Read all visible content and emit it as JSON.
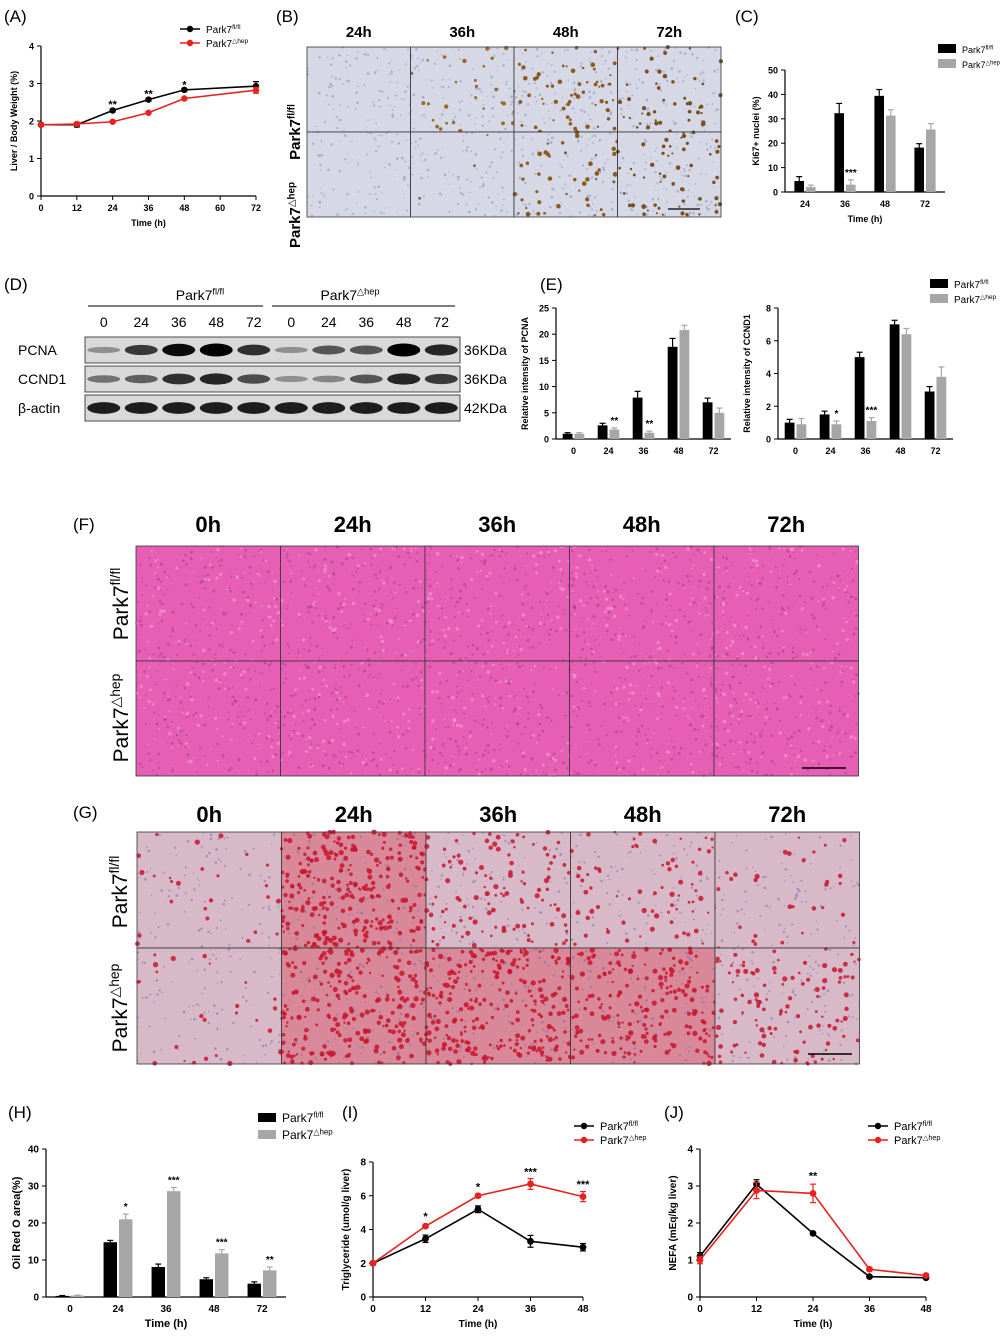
{
  "colors": {
    "fl": "#000000",
    "hep": "#e8221d",
    "bar_fl": "#000000",
    "bar_hep": "#a6a6a6",
    "ihc_bg": "#d6d8e6",
    "he_bg": "#e65fb4",
    "oro_bg": "#d8b9c8"
  },
  "legend": {
    "fl_base": "Park7",
    "fl_sup": "fl/fl",
    "hep_base": "Park7",
    "hep_sup": "△hep"
  },
  "panels": {
    "A": {
      "label": "(A)"
    },
    "B": {
      "label": "(B)",
      "cols": [
        "24h",
        "36h",
        "48h",
        "72h"
      ],
      "rows": [
        "fl",
        "hep"
      ]
    },
    "C": {
      "label": "(C)"
    },
    "D": {
      "label": "(D)",
      "group1": "Park7",
      "group1_sup": "fl/fl",
      "group2": "Park7",
      "group2_sup": "△hep",
      "lanes": [
        "0",
        "24",
        "36",
        "48",
        "72",
        "0",
        "24",
        "36",
        "48",
        "72"
      ],
      "proteins": [
        "PCNA",
        "CCND1",
        "β-actin"
      ],
      "sizes": [
        "36KDa",
        "36KDa",
        "42KDa"
      ],
      "band_intensity": {
        "PCNA": [
          0.25,
          0.7,
          0.95,
          1.0,
          0.75,
          0.25,
          0.55,
          0.55,
          1.0,
          0.8
        ],
        "CCND1": [
          0.4,
          0.5,
          0.75,
          0.8,
          0.6,
          0.25,
          0.3,
          0.55,
          0.8,
          0.7
        ],
        "β-actin": [
          0.85,
          0.85,
          0.85,
          0.85,
          0.85,
          0.85,
          0.85,
          0.85,
          0.85,
          0.85
        ]
      }
    },
    "E": {
      "label": "(E)"
    },
    "F": {
      "label": "(F)",
      "cols": [
        "0h",
        "24h",
        "36h",
        "48h",
        "72h"
      ]
    },
    "G": {
      "label": "(G)",
      "cols": [
        "0h",
        "24h",
        "36h",
        "48h",
        "72h"
      ]
    },
    "H": {
      "label": "(H)"
    },
    "I": {
      "label": "(I)"
    },
    "J": {
      "label": "(J)"
    }
  },
  "chart_data": [
    {
      "id": "A",
      "type": "line",
      "xlabel": "Time (h)",
      "ylabel": "Liver / Body Weight (%)",
      "xlim": [
        0,
        72
      ],
      "ylim": [
        0,
        4
      ],
      "xticks": [
        "0",
        "12",
        "24",
        "36",
        "48",
        "60",
        "72"
      ],
      "yticks": [
        "0",
        "1",
        "2",
        "3",
        "4"
      ],
      "x": [
        0,
        12,
        24,
        36,
        48,
        72
      ],
      "series": [
        {
          "name": "Park7 fl/fl",
          "color": "#000000",
          "values": [
            1.9,
            1.9,
            2.28,
            2.57,
            2.83,
            2.93
          ],
          "err": [
            0.04,
            0.06,
            0.04,
            0.04,
            0.04,
            0.12
          ]
        },
        {
          "name": "Park7 △hep",
          "color": "#e8221d",
          "values": [
            1.9,
            1.92,
            1.98,
            2.22,
            2.6,
            2.82
          ],
          "err": [
            0.03,
            0.04,
            0.03,
            0.03,
            0.03,
            0.08
          ]
        }
      ],
      "annotations": [
        {
          "x": 24,
          "y": 2.45,
          "text": "**"
        },
        {
          "x": 36,
          "y": 2.74,
          "text": "**"
        },
        {
          "x": 48,
          "y": 2.97,
          "text": "*"
        }
      ]
    },
    {
      "id": "C",
      "type": "bar",
      "xlabel": "Time (h)",
      "ylabel": "Ki67+ nuclei (%)",
      "categories": [
        "24",
        "36",
        "48",
        "72"
      ],
      "ylim": [
        0,
        50
      ],
      "yticks": [
        "0",
        "10",
        "20",
        "30",
        "40",
        "50"
      ],
      "series": [
        {
          "name": "Park7 fl/fl",
          "color": "#000000",
          "values": [
            4.5,
            32.3,
            39.4,
            18.2
          ],
          "err": [
            1.8,
            4.0,
            2.6,
            1.6
          ]
        },
        {
          "name": "Park7 △hep",
          "color": "#a6a6a6",
          "values": [
            2.0,
            3.0,
            31.3,
            25.6
          ],
          "err": [
            0.8,
            2.0,
            2.4,
            2.4
          ]
        }
      ],
      "annotations": [
        {
          "cat": 1,
          "series": 1,
          "text": "***"
        }
      ]
    },
    {
      "id": "E1",
      "type": "bar",
      "xlabel": "",
      "ylabel": "Relative intensity of PCNA",
      "categories": [
        "0",
        "24",
        "36",
        "48",
        "72"
      ],
      "ylim": [
        0,
        25
      ],
      "yticks": [
        "0",
        "5",
        "10",
        "15",
        "20",
        "25"
      ],
      "series": [
        {
          "name": "Park7 fl/fl",
          "color": "#000000",
          "values": [
            1.0,
            2.6,
            7.9,
            17.6,
            7.0
          ],
          "err": [
            0.2,
            0.4,
            1.2,
            1.6,
            0.8
          ]
        },
        {
          "name": "Park7 △hep",
          "color": "#a6a6a6",
          "values": [
            1.0,
            1.8,
            1.2,
            20.8,
            5.0
          ],
          "err": [
            0.2,
            0.3,
            0.3,
            0.9,
            0.9
          ]
        }
      ],
      "annotations": [
        {
          "cat": 1,
          "series": 1,
          "text": "**"
        },
        {
          "cat": 2,
          "series": 1,
          "text": "**"
        }
      ]
    },
    {
      "id": "E2",
      "type": "bar",
      "xlabel": "",
      "ylabel": "Relative intensity of CCND1",
      "categories": [
        "0",
        "24",
        "36",
        "48",
        "72"
      ],
      "ylim": [
        0,
        8
      ],
      "yticks": [
        "0",
        "2",
        "4",
        "6",
        "8"
      ],
      "series": [
        {
          "name": "Park7 fl/fl",
          "color": "#000000",
          "values": [
            1.0,
            1.5,
            5.0,
            7.0,
            2.9
          ],
          "err": [
            0.2,
            0.2,
            0.3,
            0.25,
            0.3
          ]
        },
        {
          "name": "Park7 △hep",
          "color": "#a6a6a6",
          "values": [
            0.9,
            0.9,
            1.1,
            6.4,
            3.8
          ],
          "err": [
            0.35,
            0.2,
            0.2,
            0.35,
            0.6
          ]
        }
      ],
      "annotations": [
        {
          "cat": 1,
          "series": 1,
          "text": "*"
        },
        {
          "cat": 2,
          "series": 1,
          "text": "***"
        }
      ]
    },
    {
      "id": "H",
      "type": "bar",
      "xlabel": "Time (h)",
      "ylabel": "Oil Red O area(%)",
      "categories": [
        "0",
        "24",
        "36",
        "48",
        "72"
      ],
      "ylim": [
        0,
        40
      ],
      "yticks": [
        "0",
        "10",
        "20",
        "30",
        "40"
      ],
      "series": [
        {
          "name": "Park7 fl/fl",
          "color": "#000000",
          "values": [
            0.3,
            14.8,
            8.1,
            4.8,
            3.6
          ],
          "err": [
            0.1,
            0.5,
            0.8,
            0.4,
            0.5
          ]
        },
        {
          "name": "Park7 △hep",
          "color": "#a6a6a6",
          "values": [
            0.4,
            21.0,
            28.6,
            11.8,
            7.2
          ],
          "err": [
            0.1,
            1.4,
            1.0,
            1.0,
            0.9
          ]
        }
      ],
      "annotations": [
        {
          "cat": 1,
          "series": 1,
          "text": "*"
        },
        {
          "cat": 2,
          "series": 1,
          "text": "***"
        },
        {
          "cat": 3,
          "series": 1,
          "text": "***"
        },
        {
          "cat": 4,
          "series": 1,
          "text": "**"
        }
      ]
    },
    {
      "id": "I",
      "type": "line",
      "xlabel": "Time (h)",
      "ylabel": "Triglyceride (umol/g liver)",
      "xlim": [
        0,
        48
      ],
      "ylim": [
        0,
        8
      ],
      "xticks": [
        "0",
        "12",
        "24",
        "36",
        "48"
      ],
      "yticks": [
        "0",
        "2",
        "4",
        "6",
        "8"
      ],
      "x": [
        0,
        12,
        24,
        36,
        48
      ],
      "series": [
        {
          "name": "Park7 fl/fl",
          "color": "#000000",
          "values": [
            2.0,
            3.45,
            5.2,
            3.3,
            2.95
          ],
          "err": [
            0.1,
            0.22,
            0.2,
            0.35,
            0.22
          ]
        },
        {
          "name": "Park7 △hep",
          "color": "#e8221d",
          "values": [
            2.0,
            4.2,
            6.0,
            6.7,
            5.95
          ],
          "err": [
            0.1,
            0.1,
            0.1,
            0.32,
            0.3
          ]
        }
      ],
      "annotations": [
        {
          "x": 12,
          "y": 4.8,
          "text": "*"
        },
        {
          "x": 24,
          "y": 6.55,
          "text": "*"
        },
        {
          "x": 36,
          "y": 7.45,
          "text": "***"
        },
        {
          "x": 48,
          "y": 6.7,
          "text": "***"
        }
      ]
    },
    {
      "id": "J",
      "type": "line",
      "xlabel": "Time (h)",
      "ylabel": "NEFA (mEq/kg liver)",
      "xlim": [
        0,
        48
      ],
      "ylim": [
        0,
        4
      ],
      "xticks": [
        "0",
        "12",
        "24",
        "36",
        "48"
      ],
      "yticks": [
        "0",
        "1",
        "2",
        "3",
        "4"
      ],
      "x": [
        0,
        12,
        24,
        36,
        48
      ],
      "series": [
        {
          "name": "Park7 fl/fl",
          "color": "#000000",
          "values": [
            1.1,
            3.05,
            1.72,
            0.55,
            0.52
          ],
          "err": [
            0.1,
            0.12,
            0.03,
            0.03,
            0.03
          ]
        },
        {
          "name": "Park7 △hep",
          "color": "#e8221d",
          "values": [
            1.0,
            2.88,
            2.8,
            0.75,
            0.58
          ],
          "err": [
            0.1,
            0.22,
            0.25,
            0.04,
            0.04
          ]
        }
      ],
      "annotations": [
        {
          "x": 24,
          "y": 3.28,
          "text": "**"
        }
      ]
    }
  ]
}
